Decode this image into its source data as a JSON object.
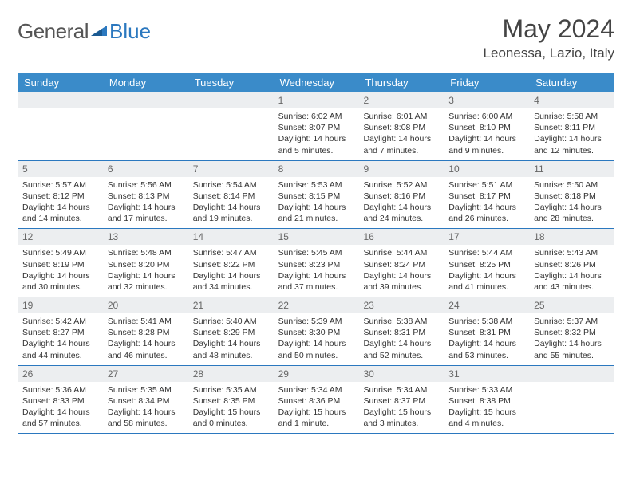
{
  "logo": {
    "text1": "General",
    "text2": "Blue"
  },
  "title": "May 2024",
  "location": "Leonessa, Lazio, Italy",
  "dayHeaders": [
    "Sunday",
    "Monday",
    "Tuesday",
    "Wednesday",
    "Thursday",
    "Friday",
    "Saturday"
  ],
  "colors": {
    "headerBg": "#3a8bc9",
    "rowBorder": "#2b78bf",
    "dayBarBg": "#eceef0"
  },
  "weeks": [
    [
      null,
      null,
      null,
      {
        "d": "1",
        "sr": "Sunrise: 6:02 AM",
        "ss": "Sunset: 8:07 PM",
        "dl1": "Daylight: 14 hours",
        "dl2": "and 5 minutes."
      },
      {
        "d": "2",
        "sr": "Sunrise: 6:01 AM",
        "ss": "Sunset: 8:08 PM",
        "dl1": "Daylight: 14 hours",
        "dl2": "and 7 minutes."
      },
      {
        "d": "3",
        "sr": "Sunrise: 6:00 AM",
        "ss": "Sunset: 8:10 PM",
        "dl1": "Daylight: 14 hours",
        "dl2": "and 9 minutes."
      },
      {
        "d": "4",
        "sr": "Sunrise: 5:58 AM",
        "ss": "Sunset: 8:11 PM",
        "dl1": "Daylight: 14 hours",
        "dl2": "and 12 minutes."
      }
    ],
    [
      {
        "d": "5",
        "sr": "Sunrise: 5:57 AM",
        "ss": "Sunset: 8:12 PM",
        "dl1": "Daylight: 14 hours",
        "dl2": "and 14 minutes."
      },
      {
        "d": "6",
        "sr": "Sunrise: 5:56 AM",
        "ss": "Sunset: 8:13 PM",
        "dl1": "Daylight: 14 hours",
        "dl2": "and 17 minutes."
      },
      {
        "d": "7",
        "sr": "Sunrise: 5:54 AM",
        "ss": "Sunset: 8:14 PM",
        "dl1": "Daylight: 14 hours",
        "dl2": "and 19 minutes."
      },
      {
        "d": "8",
        "sr": "Sunrise: 5:53 AM",
        "ss": "Sunset: 8:15 PM",
        "dl1": "Daylight: 14 hours",
        "dl2": "and 21 minutes."
      },
      {
        "d": "9",
        "sr": "Sunrise: 5:52 AM",
        "ss": "Sunset: 8:16 PM",
        "dl1": "Daylight: 14 hours",
        "dl2": "and 24 minutes."
      },
      {
        "d": "10",
        "sr": "Sunrise: 5:51 AM",
        "ss": "Sunset: 8:17 PM",
        "dl1": "Daylight: 14 hours",
        "dl2": "and 26 minutes."
      },
      {
        "d": "11",
        "sr": "Sunrise: 5:50 AM",
        "ss": "Sunset: 8:18 PM",
        "dl1": "Daylight: 14 hours",
        "dl2": "and 28 minutes."
      }
    ],
    [
      {
        "d": "12",
        "sr": "Sunrise: 5:49 AM",
        "ss": "Sunset: 8:19 PM",
        "dl1": "Daylight: 14 hours",
        "dl2": "and 30 minutes."
      },
      {
        "d": "13",
        "sr": "Sunrise: 5:48 AM",
        "ss": "Sunset: 8:20 PM",
        "dl1": "Daylight: 14 hours",
        "dl2": "and 32 minutes."
      },
      {
        "d": "14",
        "sr": "Sunrise: 5:47 AM",
        "ss": "Sunset: 8:22 PM",
        "dl1": "Daylight: 14 hours",
        "dl2": "and 34 minutes."
      },
      {
        "d": "15",
        "sr": "Sunrise: 5:45 AM",
        "ss": "Sunset: 8:23 PM",
        "dl1": "Daylight: 14 hours",
        "dl2": "and 37 minutes."
      },
      {
        "d": "16",
        "sr": "Sunrise: 5:44 AM",
        "ss": "Sunset: 8:24 PM",
        "dl1": "Daylight: 14 hours",
        "dl2": "and 39 minutes."
      },
      {
        "d": "17",
        "sr": "Sunrise: 5:44 AM",
        "ss": "Sunset: 8:25 PM",
        "dl1": "Daylight: 14 hours",
        "dl2": "and 41 minutes."
      },
      {
        "d": "18",
        "sr": "Sunrise: 5:43 AM",
        "ss": "Sunset: 8:26 PM",
        "dl1": "Daylight: 14 hours",
        "dl2": "and 43 minutes."
      }
    ],
    [
      {
        "d": "19",
        "sr": "Sunrise: 5:42 AM",
        "ss": "Sunset: 8:27 PM",
        "dl1": "Daylight: 14 hours",
        "dl2": "and 44 minutes."
      },
      {
        "d": "20",
        "sr": "Sunrise: 5:41 AM",
        "ss": "Sunset: 8:28 PM",
        "dl1": "Daylight: 14 hours",
        "dl2": "and 46 minutes."
      },
      {
        "d": "21",
        "sr": "Sunrise: 5:40 AM",
        "ss": "Sunset: 8:29 PM",
        "dl1": "Daylight: 14 hours",
        "dl2": "and 48 minutes."
      },
      {
        "d": "22",
        "sr": "Sunrise: 5:39 AM",
        "ss": "Sunset: 8:30 PM",
        "dl1": "Daylight: 14 hours",
        "dl2": "and 50 minutes."
      },
      {
        "d": "23",
        "sr": "Sunrise: 5:38 AM",
        "ss": "Sunset: 8:31 PM",
        "dl1": "Daylight: 14 hours",
        "dl2": "and 52 minutes."
      },
      {
        "d": "24",
        "sr": "Sunrise: 5:38 AM",
        "ss": "Sunset: 8:31 PM",
        "dl1": "Daylight: 14 hours",
        "dl2": "and 53 minutes."
      },
      {
        "d": "25",
        "sr": "Sunrise: 5:37 AM",
        "ss": "Sunset: 8:32 PM",
        "dl1": "Daylight: 14 hours",
        "dl2": "and 55 minutes."
      }
    ],
    [
      {
        "d": "26",
        "sr": "Sunrise: 5:36 AM",
        "ss": "Sunset: 8:33 PM",
        "dl1": "Daylight: 14 hours",
        "dl2": "and 57 minutes."
      },
      {
        "d": "27",
        "sr": "Sunrise: 5:35 AM",
        "ss": "Sunset: 8:34 PM",
        "dl1": "Daylight: 14 hours",
        "dl2": "and 58 minutes."
      },
      {
        "d": "28",
        "sr": "Sunrise: 5:35 AM",
        "ss": "Sunset: 8:35 PM",
        "dl1": "Daylight: 15 hours",
        "dl2": "and 0 minutes."
      },
      {
        "d": "29",
        "sr": "Sunrise: 5:34 AM",
        "ss": "Sunset: 8:36 PM",
        "dl1": "Daylight: 15 hours",
        "dl2": "and 1 minute."
      },
      {
        "d": "30",
        "sr": "Sunrise: 5:34 AM",
        "ss": "Sunset: 8:37 PM",
        "dl1": "Daylight: 15 hours",
        "dl2": "and 3 minutes."
      },
      {
        "d": "31",
        "sr": "Sunrise: 5:33 AM",
        "ss": "Sunset: 8:38 PM",
        "dl1": "Daylight: 15 hours",
        "dl2": "and 4 minutes."
      },
      null
    ]
  ]
}
